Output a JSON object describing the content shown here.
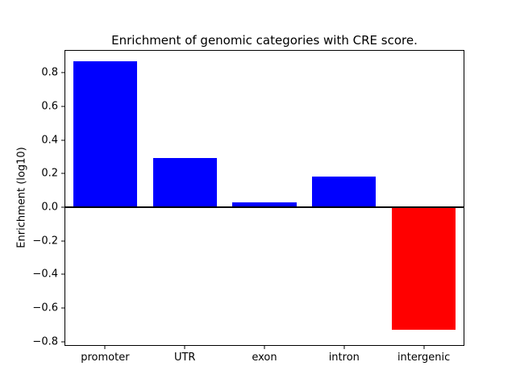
{
  "chart_data": {
    "type": "bar",
    "title": "Enrichment of genomic categories with CRE score.",
    "ylabel": "Enrichment (log10)",
    "xlabel": "",
    "categories": [
      "promoter",
      "UTR",
      "exon",
      "intron",
      "intergenic"
    ],
    "values": [
      0.87,
      0.29,
      0.03,
      0.18,
      -0.73
    ],
    "bar_colors": [
      "#0000ff",
      "#0000ff",
      "#0000ff",
      "#0000ff",
      "#ff0000"
    ],
    "positive_color": "#0000ff",
    "negative_color": "#ff0000",
    "axis_color": "#000000",
    "background_color": "#ffffff",
    "ylim": [
      -0.82,
      0.93
    ],
    "yticks": [
      -0.8,
      -0.6,
      -0.4,
      -0.2,
      0.0,
      0.2,
      0.4,
      0.6,
      0.8
    ],
    "zero_line": true,
    "grid": false,
    "legend": false
  }
}
